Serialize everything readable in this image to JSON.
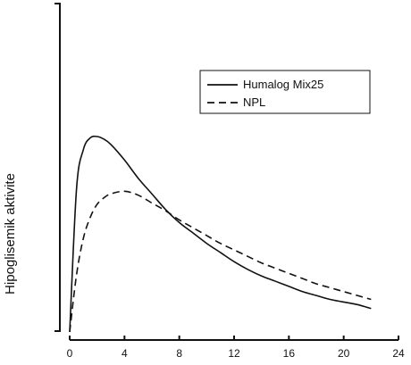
{
  "chart_data": {
    "type": "line",
    "xlabel": "",
    "ylabel": "Hipoglisemik aktivite",
    "xlim": [
      0,
      24
    ],
    "ylim": [
      0,
      100
    ],
    "x_ticks": [
      0,
      4,
      8,
      12,
      16,
      20,
      24
    ],
    "y_ticks": [],
    "grid": false,
    "legend_position": "top-right",
    "series": [
      {
        "name": "Humalog Mix25",
        "style": "solid",
        "color": "#111111",
        "x": [
          0,
          0.5,
          1,
          1.5,
          2,
          2.5,
          3,
          4,
          5,
          6,
          7,
          8,
          9,
          10,
          11,
          12,
          13,
          14,
          15,
          16,
          17,
          18,
          19,
          20,
          21,
          22
        ],
        "y": [
          0,
          55,
          70,
          74.5,
          75,
          74,
          72,
          66,
          59,
          53,
          47,
          42,
          38,
          34,
          30.5,
          27,
          24,
          21.5,
          19.5,
          17.5,
          15.5,
          14,
          12.5,
          11.5,
          10.5,
          9
        ]
      },
      {
        "name": "NPL",
        "style": "dashed",
        "color": "#111111",
        "x": [
          0,
          0.5,
          1,
          1.5,
          2,
          2.5,
          3,
          4,
          5,
          6,
          7,
          8,
          9,
          10,
          11,
          12,
          13,
          14,
          15,
          16,
          17,
          18,
          19,
          20,
          21,
          22
        ],
        "y": [
          0,
          22,
          36,
          44,
          49,
          51.5,
          53,
          54,
          52.5,
          49.5,
          46.5,
          43,
          40,
          37,
          34,
          31.5,
          29,
          26.5,
          24.5,
          22.5,
          20.5,
          18.5,
          17,
          15.5,
          14,
          12.5
        ]
      }
    ]
  }
}
